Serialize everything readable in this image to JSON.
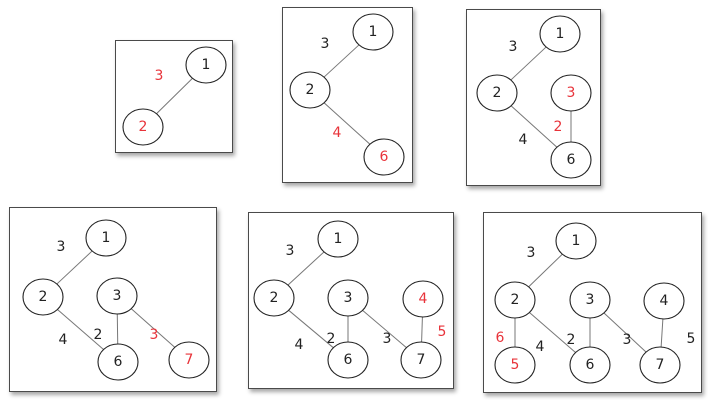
{
  "colors": {
    "highlight": "#e8333a",
    "normal": "#222222"
  },
  "panels": [
    {
      "nodes": [
        {
          "label": "1",
          "red": false
        },
        {
          "label": "2",
          "red": true
        }
      ],
      "weights": [
        {
          "label": "3",
          "red": true
        }
      ]
    },
    {
      "nodes": [
        {
          "label": "1",
          "red": false
        },
        {
          "label": "2",
          "red": false
        },
        {
          "label": "6",
          "red": true
        }
      ],
      "weights": [
        {
          "label": "3",
          "red": false
        },
        {
          "label": "4",
          "red": true
        }
      ]
    },
    {
      "nodes": [
        {
          "label": "1",
          "red": false
        },
        {
          "label": "2",
          "red": false
        },
        {
          "label": "3",
          "red": true
        },
        {
          "label": "6",
          "red": false
        }
      ],
      "weights": [
        {
          "label": "3",
          "red": false
        },
        {
          "label": "4",
          "red": false
        },
        {
          "label": "2",
          "red": true
        }
      ]
    },
    {
      "nodes": [
        {
          "label": "1",
          "red": false
        },
        {
          "label": "2",
          "red": false
        },
        {
          "label": "3",
          "red": false
        },
        {
          "label": "6",
          "red": false
        },
        {
          "label": "7",
          "red": true
        }
      ],
      "weights": [
        {
          "label": "3",
          "red": false
        },
        {
          "label": "4",
          "red": false
        },
        {
          "label": "2",
          "red": false
        },
        {
          "label": "3",
          "red": true
        }
      ]
    },
    {
      "nodes": [
        {
          "label": "1",
          "red": false
        },
        {
          "label": "2",
          "red": false
        },
        {
          "label": "3",
          "red": false
        },
        {
          "label": "4",
          "red": true
        },
        {
          "label": "6",
          "red": false
        },
        {
          "label": "7",
          "red": false
        }
      ],
      "weights": [
        {
          "label": "3",
          "red": false
        },
        {
          "label": "4",
          "red": false
        },
        {
          "label": "2",
          "red": false
        },
        {
          "label": "3",
          "red": false
        },
        {
          "label": "5",
          "red": true
        }
      ]
    },
    {
      "nodes": [
        {
          "label": "1",
          "red": false
        },
        {
          "label": "2",
          "red": false
        },
        {
          "label": "3",
          "red": false
        },
        {
          "label": "4",
          "red": false
        },
        {
          "label": "5",
          "red": true
        },
        {
          "label": "6",
          "red": false
        },
        {
          "label": "7",
          "red": false
        }
      ],
      "weights": [
        {
          "label": "3",
          "red": false
        },
        {
          "label": "6",
          "red": true
        },
        {
          "label": "4",
          "red": false
        },
        {
          "label": "2",
          "red": false
        },
        {
          "label": "3",
          "red": false
        },
        {
          "label": "5",
          "red": false
        }
      ]
    }
  ]
}
